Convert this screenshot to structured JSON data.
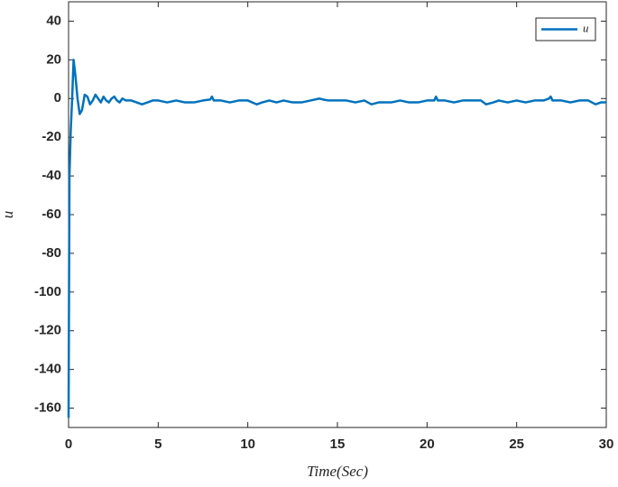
{
  "chart_data": {
    "type": "line",
    "x_label": "Time(Sec)",
    "y_label": "u",
    "x": [
      0,
      0.05,
      0.12,
      0.2,
      0.28,
      0.38,
      0.5,
      0.62,
      0.75,
      0.9,
      1.05,
      1.2,
      1.35,
      1.5,
      1.65,
      1.8,
      1.95,
      2.1,
      2.25,
      2.4,
      2.55,
      2.7,
      2.85,
      3.0,
      3.2,
      3.5,
      3.8,
      4.1,
      4.4,
      4.7,
      5.0,
      5.5,
      6.0,
      6.5,
      7.0,
      7.5,
      7.9,
      8.0,
      8.1,
      8.5,
      9.0,
      9.5,
      10.0,
      10.5,
      10.8,
      11.2,
      11.6,
      12.0,
      12.5,
      13.0,
      13.5,
      14.0,
      14.2,
      14.5,
      15.0,
      15.5,
      16.0,
      16.5,
      16.9,
      17.3,
      18.0,
      18.5,
      19.0,
      19.5,
      20.0,
      20.4,
      20.5,
      20.6,
      21.0,
      21.5,
      22.0,
      22.5,
      23.0,
      23.3,
      23.7,
      24.0,
      24.5,
      25.0,
      25.5,
      26.0,
      26.5,
      26.8,
      26.9,
      27.0,
      27.5,
      28.0,
      28.5,
      29.0,
      29.4,
      29.7,
      30.0
    ],
    "series": [
      {
        "name": "u",
        "color": "#0072bd",
        "values": [
          -165,
          -40,
          -17,
          0,
          20,
          12,
          0,
          -8,
          -6,
          2,
          1,
          -3,
          -1,
          2,
          0,
          -2,
          1,
          -1,
          -2,
          0,
          1,
          -1,
          -2,
          0,
          -1,
          -1,
          -2,
          -3,
          -2,
          -1,
          -1,
          -2,
          -1,
          -2,
          -2,
          -1,
          -0.5,
          1,
          -1,
          -1,
          -2,
          -1,
          -1,
          -3,
          -2,
          -1,
          -2,
          -1,
          -2,
          -2,
          -1,
          0,
          -0.5,
          -1,
          -1,
          -1,
          -2,
          -1,
          -3,
          -2,
          -2,
          -1,
          -2,
          -2,
          -1,
          -1,
          1,
          -1,
          -1,
          -2,
          -1,
          -1,
          -1,
          -3,
          -2,
          -1,
          -2,
          -1,
          -2,
          -1,
          -1,
          0,
          1,
          -1,
          -1,
          -2,
          -1,
          -1,
          -3,
          -2,
          -2
        ]
      }
    ],
    "xlim": [
      0,
      30
    ],
    "xticks": [
      0,
      5,
      10,
      15,
      20,
      25,
      30
    ],
    "ylim": [
      -170,
      50
    ],
    "yticks": [
      -160,
      -140,
      -120,
      -100,
      -80,
      -60,
      -40,
      -20,
      0,
      20,
      40
    ],
    "legend": "upper right"
  }
}
